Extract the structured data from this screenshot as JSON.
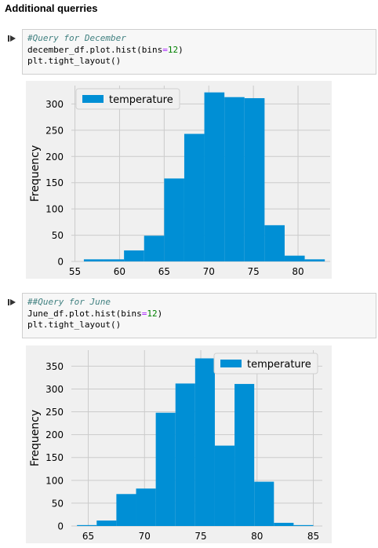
{
  "heading": "Additional querries",
  "cells": [
    {
      "code": [
        {
          "parts": [
            {
              "t": "#Query for December",
              "c": "cm"
            }
          ]
        },
        {
          "parts": [
            {
              "t": "december_df",
              "c": "kw"
            },
            {
              "t": ".",
              "c": "kw"
            },
            {
              "t": "plot",
              "c": "kw"
            },
            {
              "t": ".",
              "c": "kw"
            },
            {
              "t": "hist(bins",
              "c": "kw"
            },
            {
              "t": "=",
              "c": "op"
            },
            {
              "t": "12",
              "c": "num"
            },
            {
              "t": ")",
              "c": "kw"
            }
          ]
        },
        {
          "parts": [
            {
              "t": "plt",
              "c": "kw"
            },
            {
              "t": ".",
              "c": "kw"
            },
            {
              "t": "tight_layout()",
              "c": "kw"
            }
          ]
        }
      ]
    },
    {
      "code": [
        {
          "parts": [
            {
              "t": "##Query for June",
              "c": "cm"
            }
          ]
        },
        {
          "parts": [
            {
              "t": "June_df",
              "c": "kw"
            },
            {
              "t": ".",
              "c": "kw"
            },
            {
              "t": "plot",
              "c": "kw"
            },
            {
              "t": ".",
              "c": "kw"
            },
            {
              "t": "hist(bins",
              "c": "kw"
            },
            {
              "t": "=",
              "c": "op"
            },
            {
              "t": "12",
              "c": "num"
            },
            {
              "t": ")",
              "c": "kw"
            }
          ]
        },
        {
          "parts": [
            {
              "t": "plt",
              "c": "kw"
            },
            {
              "t": ".",
              "c": "kw"
            },
            {
              "t": "tight_layout()",
              "c": "kw"
            }
          ]
        }
      ]
    }
  ],
  "icons": {
    "run_marker": "run-cell-icon"
  },
  "colors": {
    "bar": "#008fd5",
    "plot_bg": "#f0f0f0",
    "grid": "#cbcbcb"
  },
  "chart_data": [
    {
      "type": "bar",
      "xlabel": "",
      "ylabel": "Frequency",
      "legend": "temperature",
      "legend_position": "top-left",
      "grid": true,
      "xlim": [
        54.6,
        83.6
      ],
      "ylim": [
        0,
        335
      ],
      "xticks": [
        55,
        60,
        65,
        70,
        75,
        80
      ],
      "yticks": [
        0,
        50,
        100,
        150,
        200,
        250,
        300
      ],
      "bin_edges": [
        56,
        58.25,
        60.5,
        62.75,
        65,
        67.25,
        69.5,
        71.75,
        74,
        76.25,
        78.5,
        80.75,
        83
      ],
      "values": [
        4,
        4,
        21,
        49,
        158,
        243,
        322,
        313,
        311,
        69,
        11,
        4
      ]
    },
    {
      "type": "bar",
      "xlabel": "",
      "ylabel": "Frequency",
      "legend": "temperature",
      "legend_position": "top-right",
      "grid": true,
      "xlim": [
        63.5,
        85.8
      ],
      "ylim": [
        0,
        385
      ],
      "xticks": [
        65,
        70,
        75,
        80,
        85
      ],
      "yticks": [
        0,
        50,
        100,
        150,
        200,
        250,
        300,
        350
      ],
      "bin_edges": [
        64,
        65.75,
        67.5,
        69.25,
        71,
        72.75,
        74.5,
        76.25,
        78,
        79.75,
        81.5,
        83.25,
        85
      ],
      "values": [
        2,
        12,
        70,
        82,
        248,
        312,
        367,
        176,
        311,
        97,
        7,
        2
      ]
    }
  ]
}
